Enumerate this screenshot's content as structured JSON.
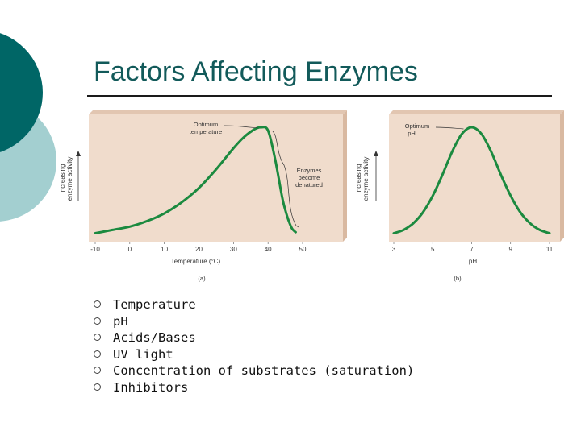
{
  "slide": {
    "title": "Factors Affecting Enzymes",
    "colors": {
      "teal_dark": "#006666",
      "teal_light": "#a3cfd0",
      "panel_bg": "#f0dccc",
      "title_color": "#125a5a"
    },
    "bullets": [
      "Temperature",
      "pH",
      "Acids/Bases",
      "UV light",
      "Concentration of substrates (saturation)",
      "Inhibitors"
    ],
    "bullet_icon": "circle-bullet-icon"
  },
  "chart_data": [
    {
      "type": "line",
      "panel_label": "(a)",
      "xlabel": "Temperature (°C)",
      "ylabel": "Increasing enzyme activity",
      "xlim": [
        -10,
        50
      ],
      "xticks": [
        -10,
        0,
        10,
        20,
        30,
        40,
        50
      ],
      "yaxis_numeric": false,
      "annotations": [
        "Optimum temperature",
        "Enzymes become denatured"
      ],
      "series": [
        {
          "x": [
            -10,
            -5,
            0,
            5,
            10,
            15,
            20,
            25,
            30,
            33,
            36,
            38,
            40,
            42,
            44,
            45,
            46,
            47,
            48
          ],
          "y": [
            0.04,
            0.07,
            0.1,
            0.15,
            0.22,
            0.32,
            0.45,
            0.62,
            0.81,
            0.91,
            0.98,
            1.0,
            0.97,
            0.72,
            0.38,
            0.25,
            0.15,
            0.08,
            0.05
          ]
        }
      ]
    },
    {
      "type": "line",
      "panel_label": "(b)",
      "xlabel": "pH",
      "ylabel": "Increasing enzyme activity",
      "xlim": [
        3,
        11
      ],
      "xticks": [
        3,
        5,
        7,
        9,
        11
      ],
      "yaxis_numeric": false,
      "annotations": [
        "Optimum pH"
      ],
      "series": [
        {
          "x": [
            3,
            3.5,
            4,
            4.5,
            5,
            5.5,
            6,
            6.5,
            7,
            7.5,
            8,
            8.5,
            9,
            9.5,
            10,
            10.5,
            11
          ],
          "y": [
            0.04,
            0.07,
            0.13,
            0.23,
            0.38,
            0.57,
            0.78,
            0.94,
            1.0,
            0.94,
            0.78,
            0.57,
            0.38,
            0.23,
            0.13,
            0.07,
            0.04
          ]
        }
      ]
    }
  ]
}
